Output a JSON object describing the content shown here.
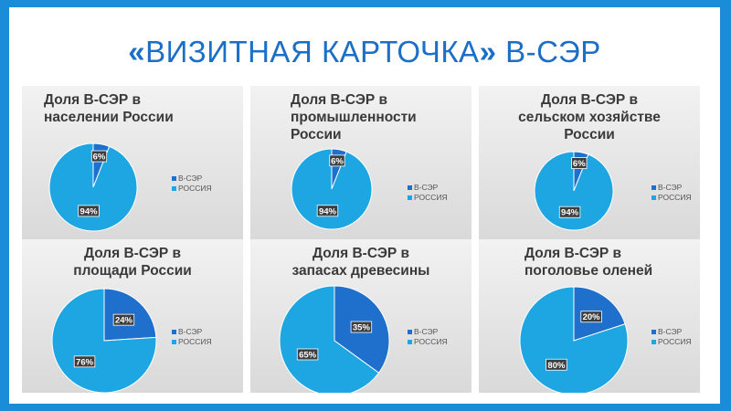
{
  "slide_title": {
    "open_quote": "«",
    "text": "ВИЗИТНАЯ КАРТОЧКА",
    "close_quote": "»",
    "suffix": " В-СЭР"
  },
  "colors": {
    "background": "#1a8cd8",
    "title": "#1b6fc7",
    "ser": "#1f6fcc",
    "russia": "#1ea6e3"
  },
  "chart_data": [
    {
      "type": "pie",
      "title": [
        "Доля В-СЭР в",
        "населении России"
      ],
      "categories": [
        "В-СЭР",
        "РОССИЯ"
      ],
      "values": [
        6,
        94
      ],
      "labels": [
        "6%",
        "94%"
      ],
      "legend": [
        "В-СЭР",
        "РОССИЯ"
      ],
      "legend_position": "right"
    },
    {
      "type": "pie",
      "title": [
        "Доля В-СЭР в",
        "промышленности",
        "России"
      ],
      "categories": [
        "В-СЭР",
        "РОССИЯ"
      ],
      "values": [
        6,
        94
      ],
      "labels": [
        "6%",
        "94%"
      ],
      "legend": [
        "В-СЭР",
        "РОССИЯ"
      ],
      "legend_position": "right"
    },
    {
      "type": "pie",
      "title": [
        "Доля В-СЭР в",
        "сельском хозяйстве",
        "России"
      ],
      "categories": [
        "В-СЭР",
        "РОССИЯ"
      ],
      "values": [
        6,
        94
      ],
      "labels": [
        "6%",
        "94%"
      ],
      "legend": [
        "В-СЭР",
        "РОССИЯ"
      ],
      "legend_position": "right"
    },
    {
      "type": "pie",
      "title": [
        "Доля В-СЭР в",
        "площади России"
      ],
      "categories": [
        "В-СЭР",
        "РОССИЯ"
      ],
      "values": [
        24,
        76
      ],
      "labels": [
        "24%",
        "76%"
      ],
      "legend": [
        "В-СЭР",
        "РОССИЯ"
      ],
      "legend_position": "right"
    },
    {
      "type": "pie",
      "title": [
        "Доля В-СЭР в",
        "запасах древесины"
      ],
      "categories": [
        "В-СЭР",
        "РОССИЯ"
      ],
      "values": [
        35,
        65
      ],
      "labels": [
        "35%",
        "65%"
      ],
      "legend": [
        "В-СЭР",
        "РОССИЯ"
      ],
      "legend_position": "right"
    },
    {
      "type": "pie",
      "title": [
        "Доля В-СЭР в",
        "поголовье оленей"
      ],
      "categories": [
        "В-СЭР",
        "РОССИЯ"
      ],
      "values": [
        20,
        80
      ],
      "labels": [
        "20%",
        "80%"
      ],
      "legend": [
        "В-СЭР",
        "РОССИЯ"
      ],
      "legend_position": "right"
    }
  ]
}
